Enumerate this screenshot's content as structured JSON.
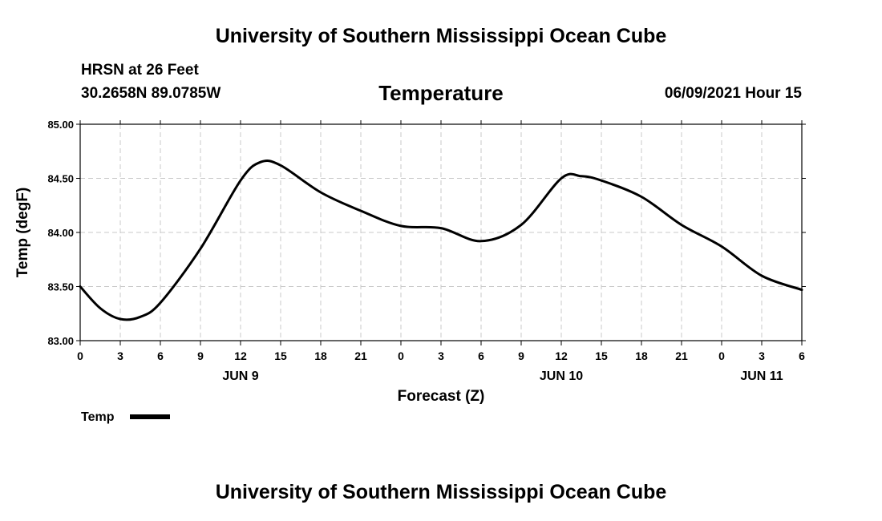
{
  "header": {
    "title": "University of Southern Mississippi Ocean Cube",
    "station": "HRSN at 26 Feet",
    "coords": "30.2658N  89.0785W",
    "parameter": "Temperature",
    "timestamp": "06/09/2021 Hour 15"
  },
  "footer": {
    "title": "University of Southern Mississippi Ocean Cube"
  },
  "chart_data": {
    "type": "line",
    "xlabel": "Forecast (Z)",
    "ylabel": "Temp (degF)",
    "ylim": [
      83.0,
      85.0
    ],
    "y_ticks": [
      "83.00",
      "83.50",
      "84.00",
      "84.50",
      "85.00"
    ],
    "x_range_hours": [
      0,
      54
    ],
    "x_tick_labels": [
      "0",
      "3",
      "6",
      "9",
      "12",
      "15",
      "18",
      "21",
      "0",
      "3",
      "6",
      "9",
      "12",
      "15",
      "18",
      "21",
      "0",
      "3",
      "6"
    ],
    "date_labels": [
      {
        "label": "JUN 9",
        "hour": 12
      },
      {
        "label": "JUN 10",
        "hour": 36
      },
      {
        "label": "JUN 11",
        "hour": 51
      }
    ],
    "grid": true,
    "legend": {
      "position": "bottom-left",
      "entries": [
        "Temp"
      ]
    },
    "series": [
      {
        "name": "Temp",
        "color": "#000000",
        "x": [
          0,
          1.5,
          3,
          4.5,
          6,
          9,
          12,
          13.5,
          15,
          18,
          21,
          24,
          27,
          30,
          33,
          36,
          37.5,
          39,
          42,
          45,
          48,
          51,
          54
        ],
        "values": [
          83.5,
          83.3,
          83.2,
          83.22,
          83.35,
          83.85,
          84.48,
          84.65,
          84.62,
          84.37,
          84.2,
          84.06,
          84.04,
          83.92,
          84.07,
          84.5,
          84.52,
          84.48,
          84.33,
          84.07,
          83.87,
          83.6,
          83.47
        ]
      }
    ]
  }
}
